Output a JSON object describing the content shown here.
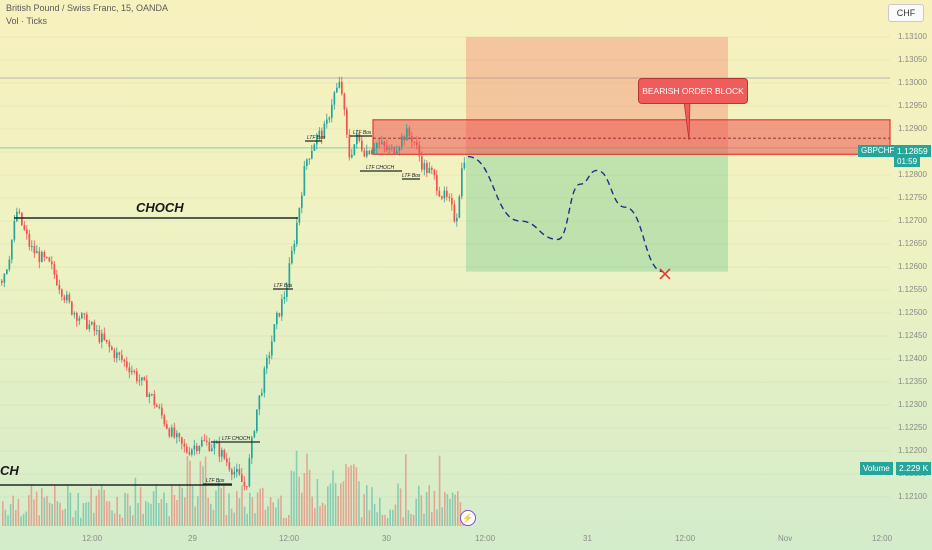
{
  "header": {
    "title": "British Pound / Swiss Franc, 15, OANDA",
    "indicator": "Vol · Ticks",
    "currency_button": "CHF"
  },
  "price_tag": {
    "symbol": "GBPCHF",
    "price": "1.12859",
    "countdown": "01:59"
  },
  "volume_tag": {
    "label": "Volume",
    "value": "2.229 K"
  },
  "price_axis": [
    "1.13100",
    "1.13050",
    "1.13000",
    "1.12950",
    "1.12900",
    "1.12850",
    "1.12800",
    "1.12750",
    "1.12700",
    "1.12650",
    "1.12600",
    "1.12550",
    "1.12500",
    "1.12450",
    "1.12400",
    "1.12350",
    "1.12300",
    "1.12250",
    "1.12200",
    "1.12150",
    "1.12100"
  ],
  "time_axis": [
    "12:00",
    "29",
    "12:00",
    "30",
    "12:00",
    "31",
    "12:00",
    "Nov",
    "12:00"
  ],
  "annotations": {
    "callout": "BEARISH ORDER BLOCK",
    "choch_main": "CHOCH",
    "choch_left": "CH",
    "ltf_bos": "LTF Bos",
    "ltf_choch": "LTF CHOCH"
  },
  "colors": {
    "up": "#26a69a",
    "down": "#ef5350",
    "order_block": "#ef5350",
    "target": "#26a69a",
    "accent": "#2962ff"
  },
  "icons": {
    "bolt": "lightning-icon",
    "target": "x-mark-icon"
  },
  "chart_data": {
    "type": "candlestick",
    "y_range": [
      1.1208,
      1.1316
    ],
    "price_path": [
      [
        0,
        1.1257
      ],
      [
        7,
        1.1261
      ],
      [
        16,
        1.1272
      ],
      [
        30,
        1.1264
      ],
      [
        50,
        1.126
      ],
      [
        70,
        1.1251
      ],
      [
        90,
        1.1247
      ],
      [
        110,
        1.1242
      ],
      [
        130,
        1.1238
      ],
      [
        150,
        1.1232
      ],
      [
        170,
        1.1224
      ],
      [
        185,
        1.122
      ],
      [
        200,
        1.1222
      ],
      [
        215,
        1.1221
      ],
      [
        232,
        1.1216
      ],
      [
        245,
        1.1212
      ],
      [
        255,
        1.1228
      ],
      [
        265,
        1.1238
      ],
      [
        275,
        1.1248
      ],
      [
        285,
        1.1255
      ],
      [
        295,
        1.1268
      ],
      [
        305,
        1.1283
      ],
      [
        315,
        1.1288
      ],
      [
        325,
        1.129
      ],
      [
        332,
        1.1297
      ],
      [
        340,
        1.13
      ],
      [
        348,
        1.1284
      ],
      [
        356,
        1.1288
      ],
      [
        365,
        1.1285
      ],
      [
        375,
        1.1287
      ],
      [
        390,
        1.1285
      ],
      [
        405,
        1.1289
      ],
      [
        412,
        1.1288
      ],
      [
        422,
        1.1282
      ],
      [
        432,
        1.128
      ],
      [
        440,
        1.1276
      ],
      [
        448,
        1.1274
      ],
      [
        455,
        1.127
      ],
      [
        462,
        1.1283
      ],
      [
        466,
        1.1286
      ]
    ],
    "order_block": {
      "high": 1.1292,
      "low": 1.12845,
      "mid": 1.1288
    },
    "trade_box": {
      "entry": 1.12859,
      "stop": 1.131,
      "target": 1.1259
    },
    "projection": [
      [
        468,
        1.1284
      ],
      [
        520,
        1.127
      ],
      [
        558,
        1.1266
      ],
      [
        580,
        1.1278
      ],
      [
        597,
        1.1281
      ],
      [
        625,
        1.1273
      ],
      [
        663,
        1.1259
      ]
    ],
    "levels": [
      {
        "label": "CHOCH",
        "price": 1.12722
      },
      {
        "label": "CH",
        "price": 1.1215
      },
      {
        "label": "LTF Bos",
        "price": 1.12875
      },
      {
        "label": "LTF Bos",
        "price": 1.12563
      },
      {
        "label": "LTF CHOCH",
        "price": 1.12232
      },
      {
        "label": "LTF Bos",
        "price": 1.12145
      },
      {
        "label": "LTF CHOCH",
        "price": 1.12831
      },
      {
        "label": "LTF Bos",
        "price": 1.12815
      }
    ],
    "last_price": 1.12859,
    "last_volume": "2.229 K"
  }
}
